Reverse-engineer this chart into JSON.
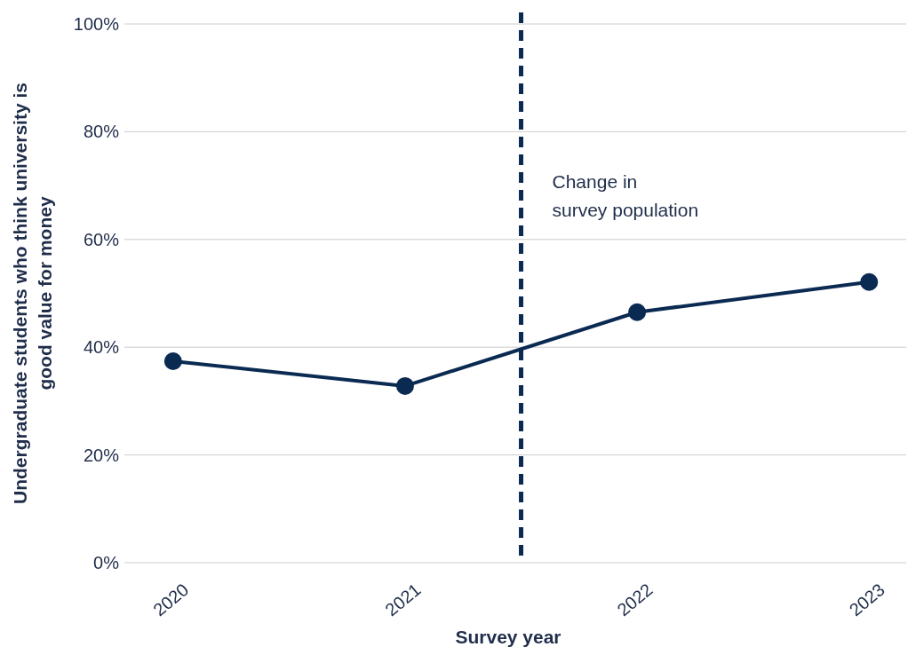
{
  "chart_data": {
    "type": "line",
    "xlabel": "Survey year",
    "ylabel": "Undergraduate students who think university is good value for money",
    "x": [
      2020,
      2021,
      2022,
      2023
    ],
    "series": [
      {
        "color": "#0b2a52",
        "values": [
          37.4,
          32.8,
          46.5,
          52.1
        ]
      }
    ],
    "xlim": [
      2019.79,
      2023.16
    ],
    "xticks": [
      2020,
      2021,
      2022,
      2023
    ],
    "ylim": [
      0,
      100
    ],
    "yticks": [
      {
        "value": 0,
        "label": "0%"
      },
      {
        "value": 20,
        "label": "20%"
      },
      {
        "value": 40,
        "label": "40%"
      },
      {
        "value": 60,
        "label": "60%"
      },
      {
        "value": 80,
        "label": "80%"
      },
      {
        "value": 100,
        "label": "100%"
      }
    ],
    "ref_lines": [
      {
        "axis": "x",
        "value": 2021.5,
        "label": "Change in survey population",
        "color": "#0b2a52",
        "line_style": "dashed"
      }
    ],
    "grid": "y",
    "marker": "circle",
    "line_style": "solid"
  }
}
